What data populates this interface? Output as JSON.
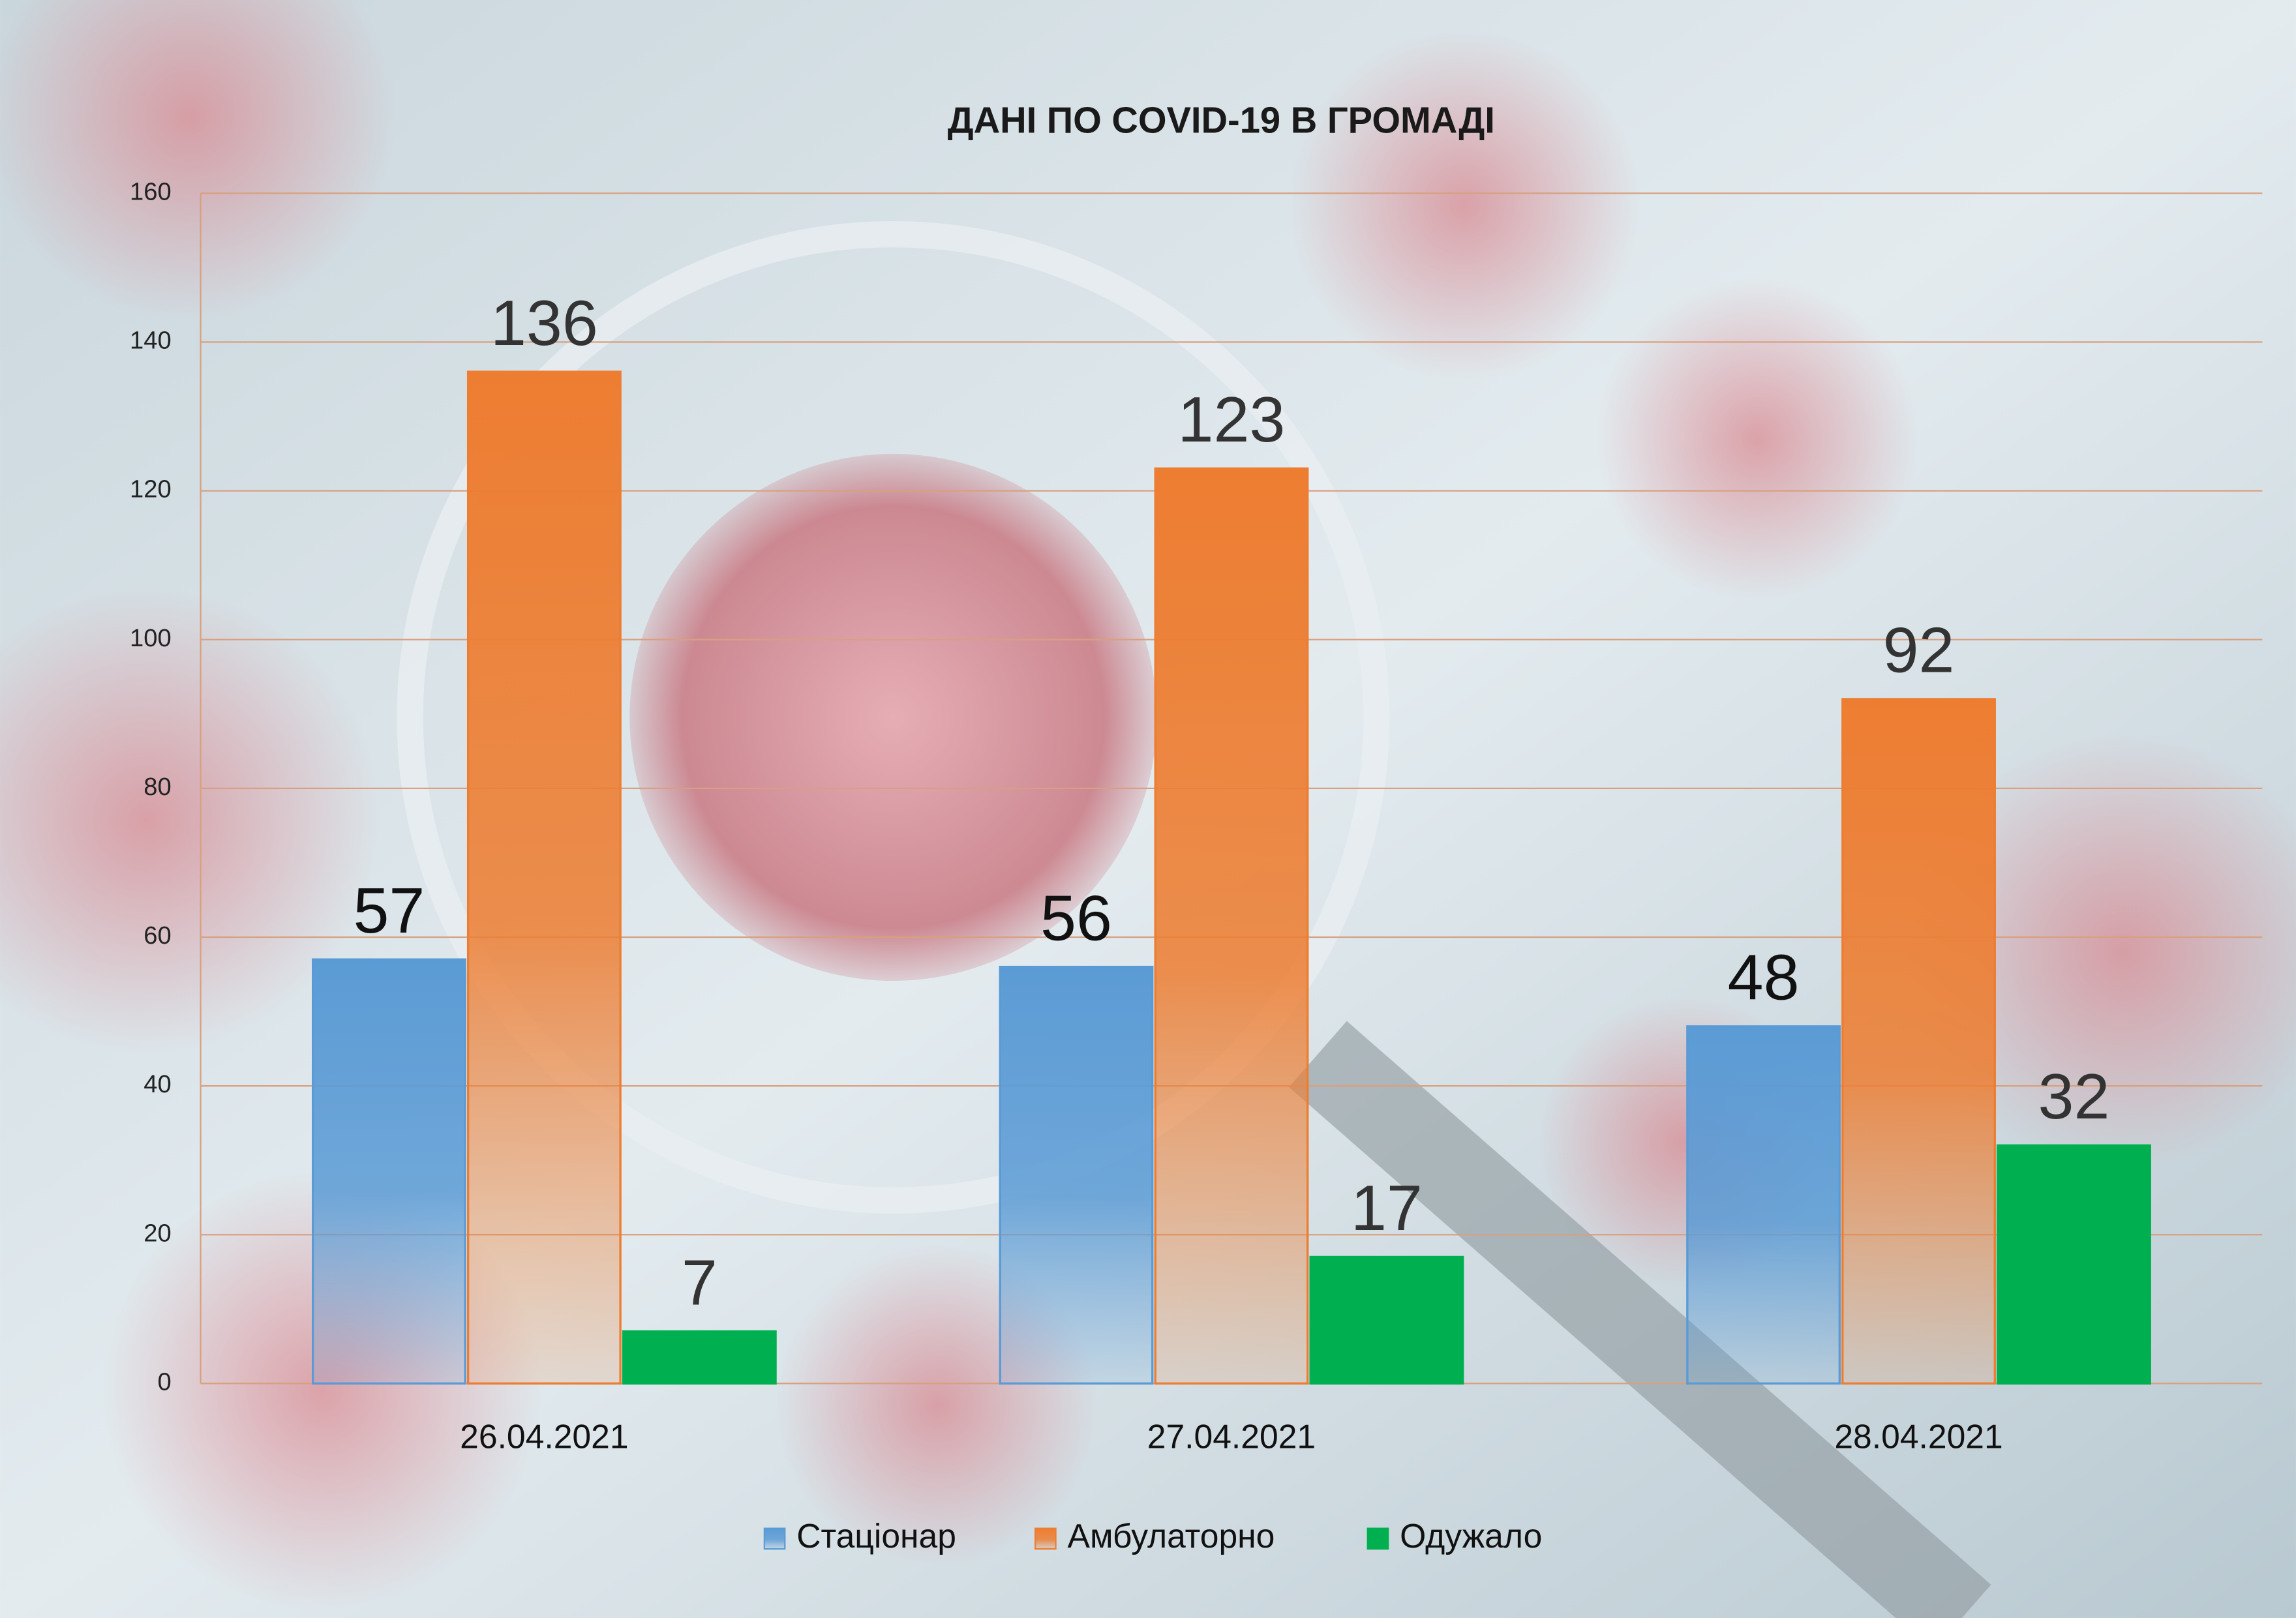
{
  "chart_data": {
    "type": "bar",
    "title": "ДАНІ ПО COVID-19 В ГРОМАДІ",
    "categories": [
      "26.04.2021",
      "27.04.2021",
      "28.04.2021"
    ],
    "series": [
      {
        "name": "Стаціонар",
        "color": "#5b9bd5",
        "values": [
          57,
          56,
          48
        ]
      },
      {
        "name": "Амбулаторно",
        "color": "#ed7d31",
        "values": [
          136,
          123,
          92
        ]
      },
      {
        "name": "Одужало",
        "color": "#00b050",
        "values": [
          7,
          17,
          32
        ]
      }
    ],
    "ylim": [
      0,
      160
    ],
    "yticks": [
      0,
      20,
      40,
      60,
      80,
      100,
      120,
      140,
      160
    ],
    "grid": true,
    "legend": "bottom"
  }
}
